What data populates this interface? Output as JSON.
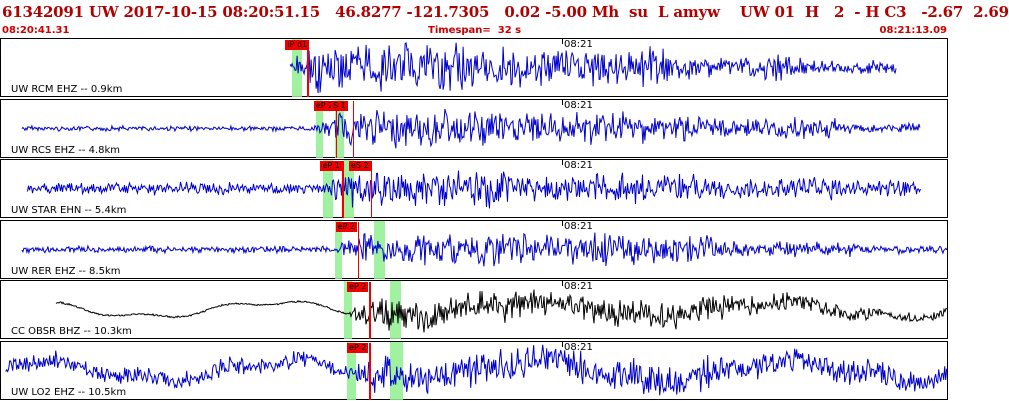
{
  "header": {
    "title": "61342091 UW 2017-10-15 08:20:51.15   46.8277 -121.7305   0.02 -5.00 Mh  su  L amyw    UW 01  H   2  - H C3   -2.67  2.69",
    "time_start": "08:20:41.31",
    "timespan": "Timespan=  32 s",
    "time_end": "08:21:13.09"
  },
  "minute_label": "08:21",
  "colors": {
    "trace_blue": "#0000cc",
    "trace_black": "#000000",
    "pick_red": "#ee0000",
    "band_green": "#8ff08f",
    "header_red": "#b00000"
  },
  "panels": [
    {
      "label": "UW RCM EHZ -- 0.9km",
      "color": "#0000cc",
      "picks": [
        {
          "text": "iP d1",
          "pos": 0.3
        }
      ],
      "bands": [
        [
          0.307,
          0.318
        ]
      ],
      "amp": [
        1,
        1,
        30,
        22,
        14,
        8
      ],
      "start": 0.305,
      "end": 0.945,
      "seed": 3
    },
    {
      "label": "UW RCS EHZ -- 4.8km",
      "color": "#0000cc",
      "picks": [
        {
          "text": "eP 2",
          "pos": 0.33
        },
        {
          "text": "S 1",
          "pos": 0.348
        }
      ],
      "bands": [
        [
          0.332,
          0.34
        ],
        [
          0.352,
          0.362
        ]
      ],
      "amp": [
        3,
        3,
        22,
        18,
        12,
        6
      ],
      "start": 0.022,
      "end": 0.97,
      "seed": 7
    },
    {
      "label": "UW STAR EHN -- 5.4km",
      "color": "#0000cc",
      "picks": [
        {
          "text": "eP 1",
          "pos": 0.337
        },
        {
          "text": "eS 2",
          "pos": 0.367
        }
      ],
      "bands": [
        [
          0.34,
          0.35
        ],
        [
          0.362,
          0.372
        ]
      ],
      "amp": [
        7,
        7,
        22,
        16,
        12,
        9
      ],
      "start": 0.028,
      "end": 0.97,
      "seed": 11
    },
    {
      "label": "UW RER EHZ -- 8.5km",
      "color": "#0000cc",
      "picks": [
        {
          "text": "eP 2",
          "pos": 0.353
        }
      ],
      "bands": [
        [
          0.352,
          0.36
        ],
        [
          0.393,
          0.405
        ]
      ],
      "amp": [
        4,
        4,
        20,
        18,
        10,
        5
      ],
      "start": 0.022,
      "end": 0.998,
      "seed": 19
    },
    {
      "label": "CC OBSR BHZ -- 10.3km",
      "color": "#000000",
      "picks": [
        {
          "text": "eP 2",
          "pos": 0.365
        }
      ],
      "bands": [
        [
          0.362,
          0.37
        ],
        [
          0.41,
          0.422
        ]
      ],
      "amp": [
        8,
        5,
        18,
        16,
        10,
        6
      ],
      "start": 0.058,
      "end": 0.998,
      "seed": 23,
      "longperiod": true
    },
    {
      "label": "UW LO2 EHZ -- 10.5km",
      "color": "#0000cc",
      "picks": [
        {
          "text": "eP 2",
          "pos": 0.365
        }
      ],
      "bands": [
        [
          0.365,
          0.374
        ],
        [
          0.41,
          0.424
        ]
      ],
      "amp": [
        10,
        10,
        22,
        20,
        16,
        14
      ],
      "start": 0.005,
      "end": 0.998,
      "seed": 29,
      "longperiod": true
    }
  ]
}
